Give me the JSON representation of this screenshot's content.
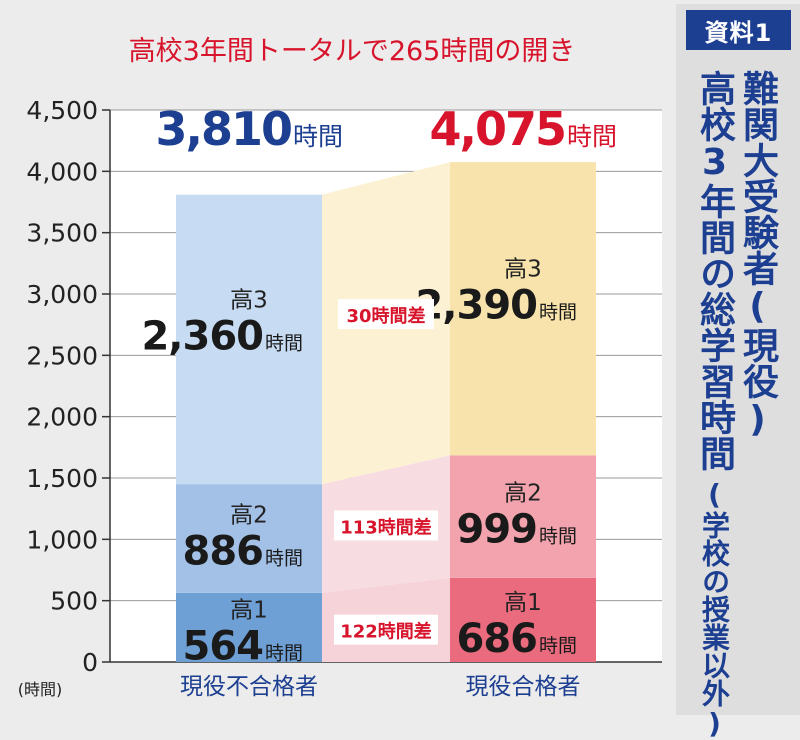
{
  "sidebar": {
    "badge": "資料1",
    "title_line1": "難関大受験者(現役)",
    "title_line2": "高校3年間の総学習時間",
    "title_line2_paren": "(学校の授業以外)"
  },
  "chart_data": {
    "type": "bar",
    "stacked": true,
    "title": "高校3年間トータルで265時間の開き",
    "ylabel": "(時間)",
    "ylim": [
      0,
      4500
    ],
    "yticks": [
      0,
      500,
      1000,
      1500,
      2000,
      2500,
      3000,
      3500,
      4000,
      4500
    ],
    "ytick_labels": [
      "0",
      "500",
      "1,000",
      "1,500",
      "2,000",
      "2,500",
      "3,000",
      "3,500",
      "4,000",
      "4,500"
    ],
    "categories": [
      "現役不合格者",
      "現役合格者"
    ],
    "unit": "時間",
    "series": [
      {
        "name": "高1",
        "values": [
          564,
          686
        ],
        "value_labels": [
          "564",
          "686"
        ],
        "colors": [
          "#6e9fd5",
          "#ea6b7e"
        ]
      },
      {
        "name": "高2",
        "values": [
          886,
          999
        ],
        "value_labels": [
          "886",
          "999"
        ],
        "colors": [
          "#a3c1e6",
          "#f2a3ad"
        ]
      },
      {
        "name": "高3",
        "values": [
          2360,
          2390
        ],
        "value_labels": [
          "2,360",
          "2,390"
        ],
        "colors": [
          "#c7dcf3",
          "#f7e3ab"
        ]
      }
    ],
    "totals": [
      3810,
      4075
    ],
    "total_labels": [
      "3,810",
      "4,075"
    ],
    "total_colors": [
      "#1d3f91",
      "#d7142b"
    ],
    "differences": [
      "122時間差",
      "113時間差",
      "30時間差"
    ],
    "title_color": "#d7142b",
    "difference_color": "#d7142b"
  }
}
